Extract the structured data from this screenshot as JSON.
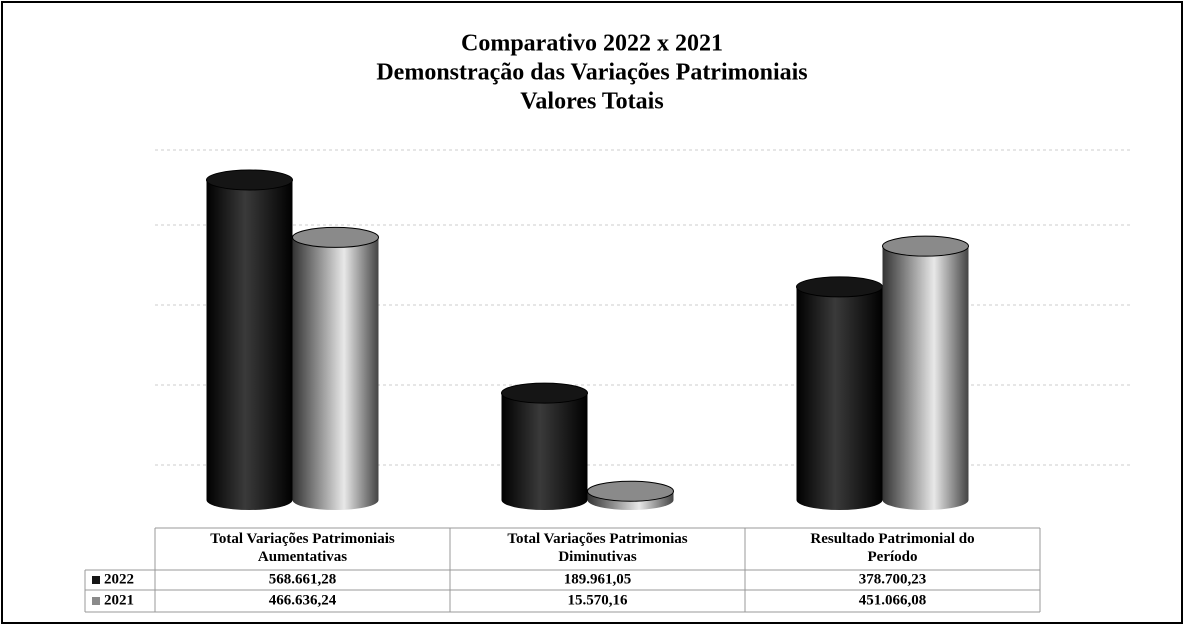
{
  "chart_data": {
    "type": "bar",
    "title": [
      "Comparativo 2022 x 2021",
      "Demonstração das Variações Patrimoniais",
      "Valores Totais"
    ],
    "categories": [
      "Total Variações Patrimoniais Aumentativas",
      "Total Variações Patrimonias Diminutivas",
      "Resultado Patrimonial do Período"
    ],
    "series": [
      {
        "name": "2022",
        "color": "#151515",
        "values": [
          568661.28,
          189961.05,
          378700.23
        ],
        "value_labels": [
          "568.661,28",
          "189.961,05",
          "378.700,23"
        ]
      },
      {
        "name": "2021",
        "color": "#8a8a8a",
        "values": [
          466636.24,
          15570.16,
          451066.08
        ],
        "value_labels": [
          "466.636,24",
          "15.570,16",
          "451.066,08"
        ]
      }
    ]
  }
}
